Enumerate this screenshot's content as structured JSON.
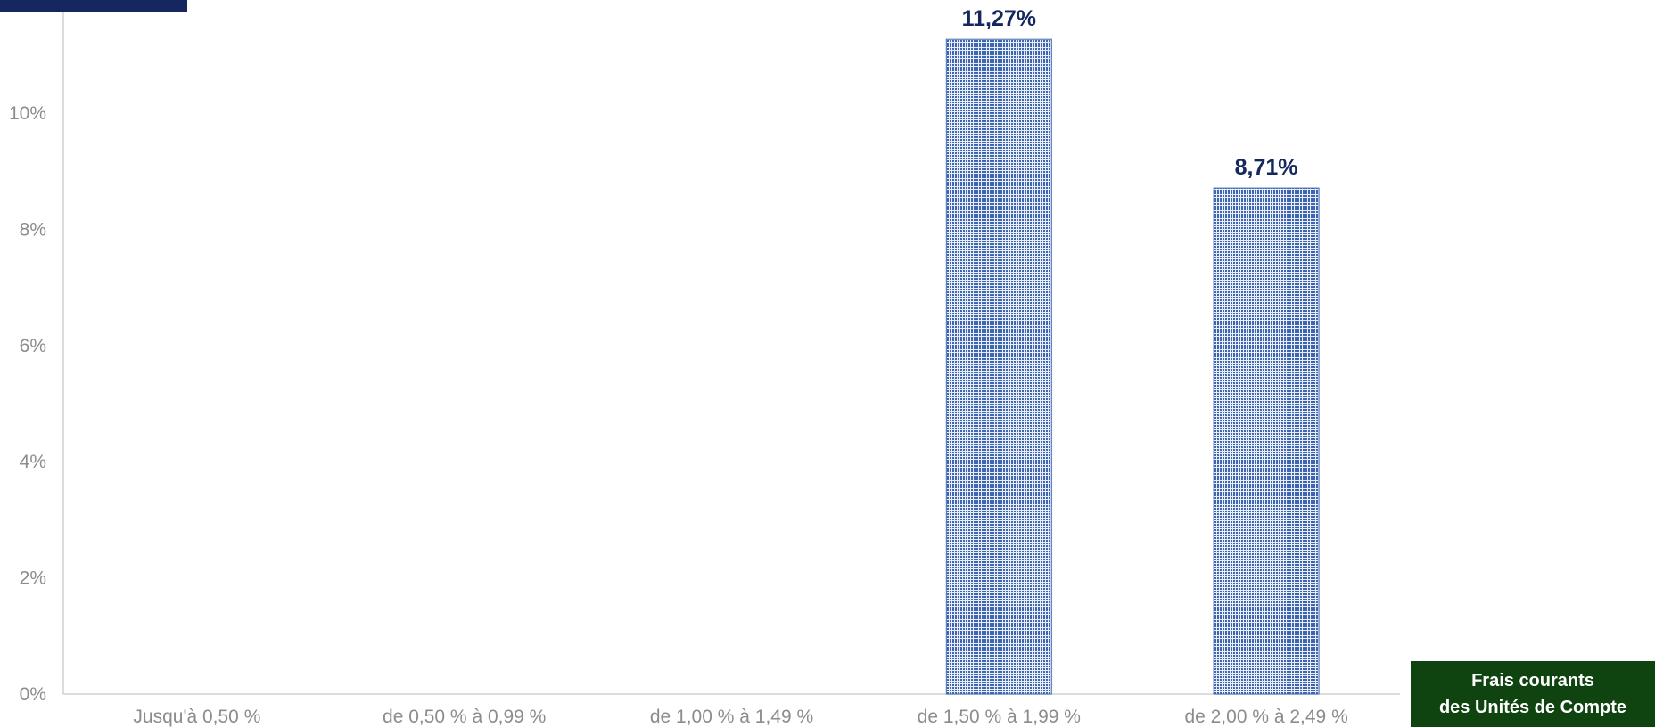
{
  "badge": {
    "line1": "Frais courants",
    "line2": "des Unités de Compte",
    "background": "#0f430f"
  },
  "colors": {
    "bar": "#3f65b0",
    "data_label": "#14285f",
    "axis_text": "#8c8c8c",
    "corner_block": "#14285f"
  },
  "chart_data": {
    "type": "bar",
    "categories": [
      "Jusqu'à 0,50 %",
      "de 0,50 % à 0,99 %",
      "de 1,00 % à 1,49 %",
      "de 1,50 % à 1,99 %",
      "de 2,00 % à 2,49 %"
    ],
    "values": [
      0,
      0,
      0,
      11.27,
      8.71
    ],
    "data_labels": [
      "",
      "",
      "",
      "11,27%",
      "8,71%"
    ],
    "ylim": [
      0,
      11.5
    ],
    "y_ticks": [
      0,
      2,
      4,
      6,
      8,
      10
    ],
    "y_tick_labels": [
      "0%",
      "2%",
      "4%",
      "6%",
      "8%",
      "10%"
    ],
    "grid": false,
    "bar_fill": "dotted-pattern"
  }
}
